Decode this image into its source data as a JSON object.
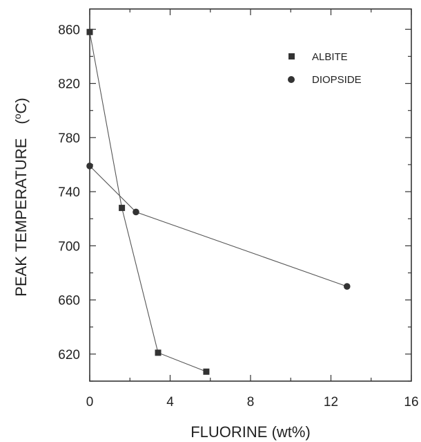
{
  "chart_data": {
    "type": "line",
    "xlabel": "FLUORINE  (wt%)",
    "ylabel": "PEAK TEMPERATURE",
    "ylabel_unit_prefix": "(",
    "ylabel_unit_sup": "o",
    "ylabel_unit_suffix": "C)",
    "xlim": [
      0,
      16
    ],
    "ylim": [
      600,
      875
    ],
    "xticks": [
      0,
      4,
      8,
      12,
      16
    ],
    "yticks": [
      620,
      660,
      700,
      740,
      780,
      820,
      860
    ],
    "x_minor_step": 2,
    "y_minor_step": 20,
    "grid": false,
    "legend_position": "top-right",
    "series": [
      {
        "name": "ALBITE",
        "marker": "square",
        "x": [
          0,
          1.6,
          3.4,
          5.8
        ],
        "y": [
          858,
          728,
          621,
          607
        ]
      },
      {
        "name": "DIOPSIDE",
        "marker": "circle",
        "x": [
          0,
          2.3,
          12.8
        ],
        "y": [
          759,
          725,
          670
        ]
      }
    ]
  }
}
